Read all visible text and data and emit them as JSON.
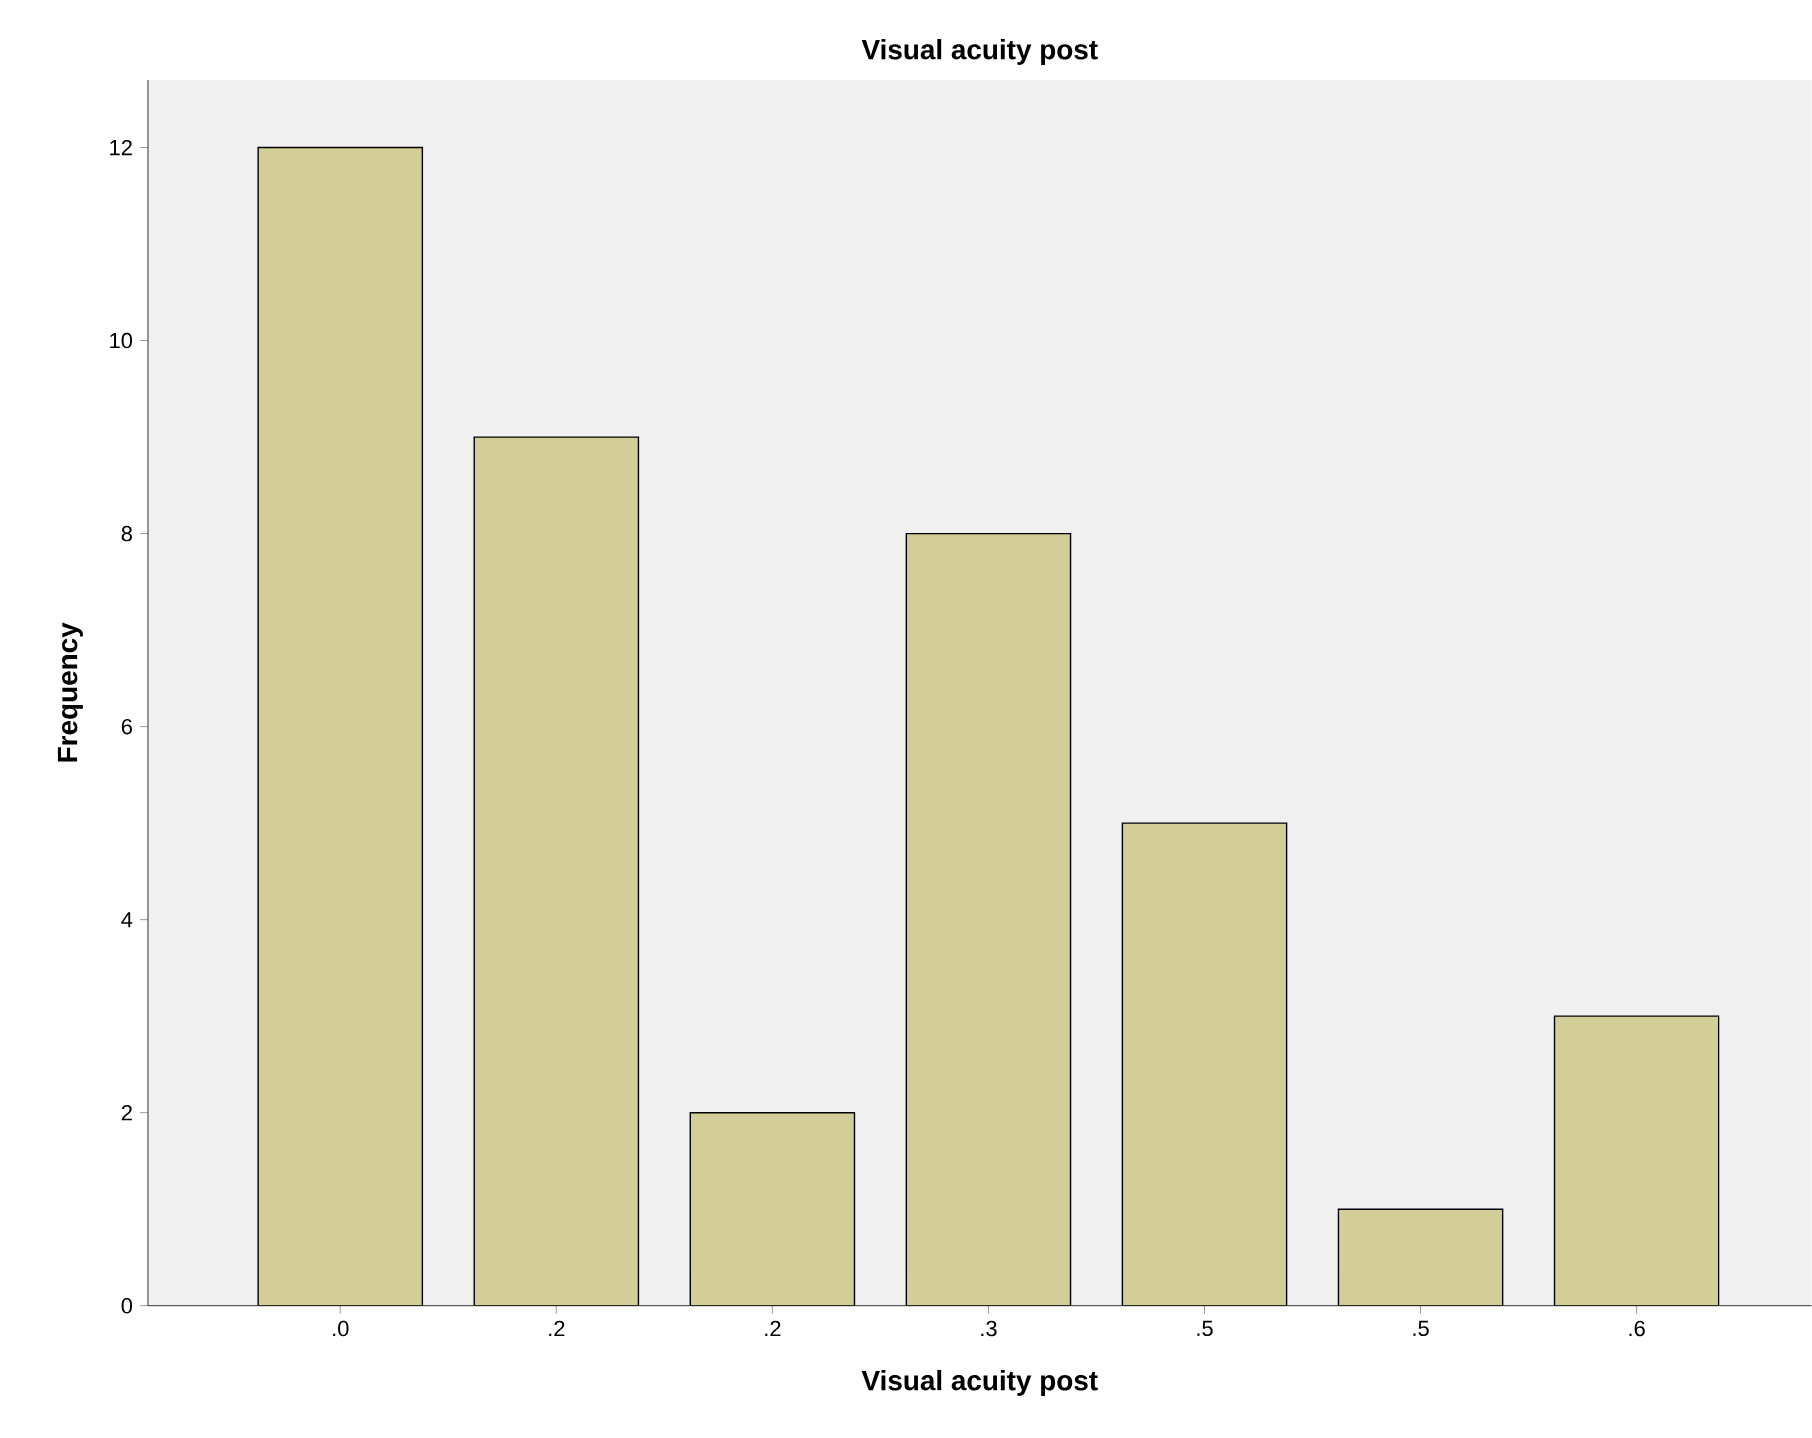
{
  "chart_data": {
    "type": "bar",
    "title": "Visual acuity post",
    "xlabel": "Visual acuity post",
    "ylabel": "Frequency",
    "categories": [
      ".0",
      ".2",
      ".2",
      ".3",
      ".5",
      ".5",
      ".6"
    ],
    "values": [
      12,
      9,
      2,
      8,
      5,
      1,
      3
    ],
    "color": "#d3ce97",
    "ylim": [
      0,
      12.7
    ],
    "yticks": [
      0,
      2,
      4,
      6,
      8,
      10,
      12
    ],
    "grid": false
  }
}
